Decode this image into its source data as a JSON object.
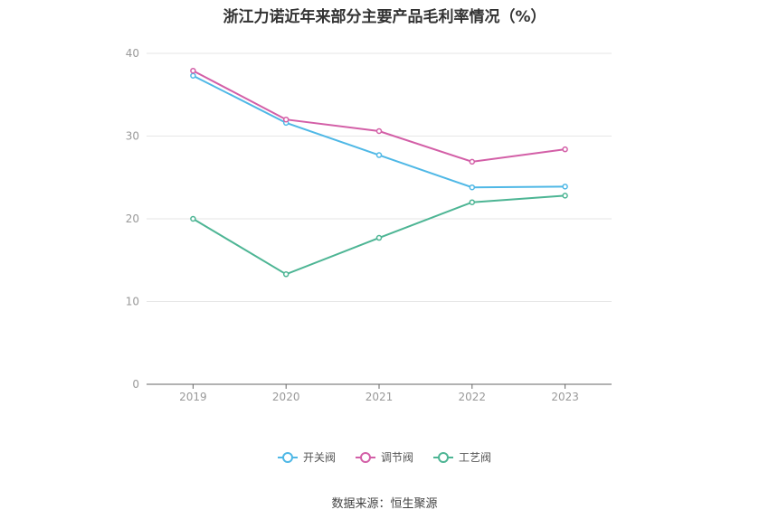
{
  "chart_data": {
    "type": "line",
    "title": "浙江力诺近年来部分主要产品毛利率情况（%）",
    "categories": [
      "2019",
      "2020",
      "2021",
      "2022",
      "2023"
    ],
    "series": [
      {
        "name": "开关阀",
        "color": "#4fb8e6",
        "values": [
          37.3,
          31.6,
          27.7,
          23.8,
          23.9
        ]
      },
      {
        "name": "调节阀",
        "color": "#d35fa7",
        "values": [
          37.9,
          32.0,
          30.6,
          26.9,
          28.4
        ]
      },
      {
        "name": "工艺阀",
        "color": "#4db594",
        "values": [
          20.0,
          13.3,
          17.7,
          22.0,
          22.8
        ]
      }
    ],
    "yticks": [
      "0",
      "10",
      "20",
      "30",
      "40"
    ],
    "ylim": [
      0,
      40
    ],
    "xlabel": "",
    "ylabel": "",
    "grid": true,
    "legend_position": "bottom-center"
  },
  "source_note": "数据来源：恒生聚源"
}
